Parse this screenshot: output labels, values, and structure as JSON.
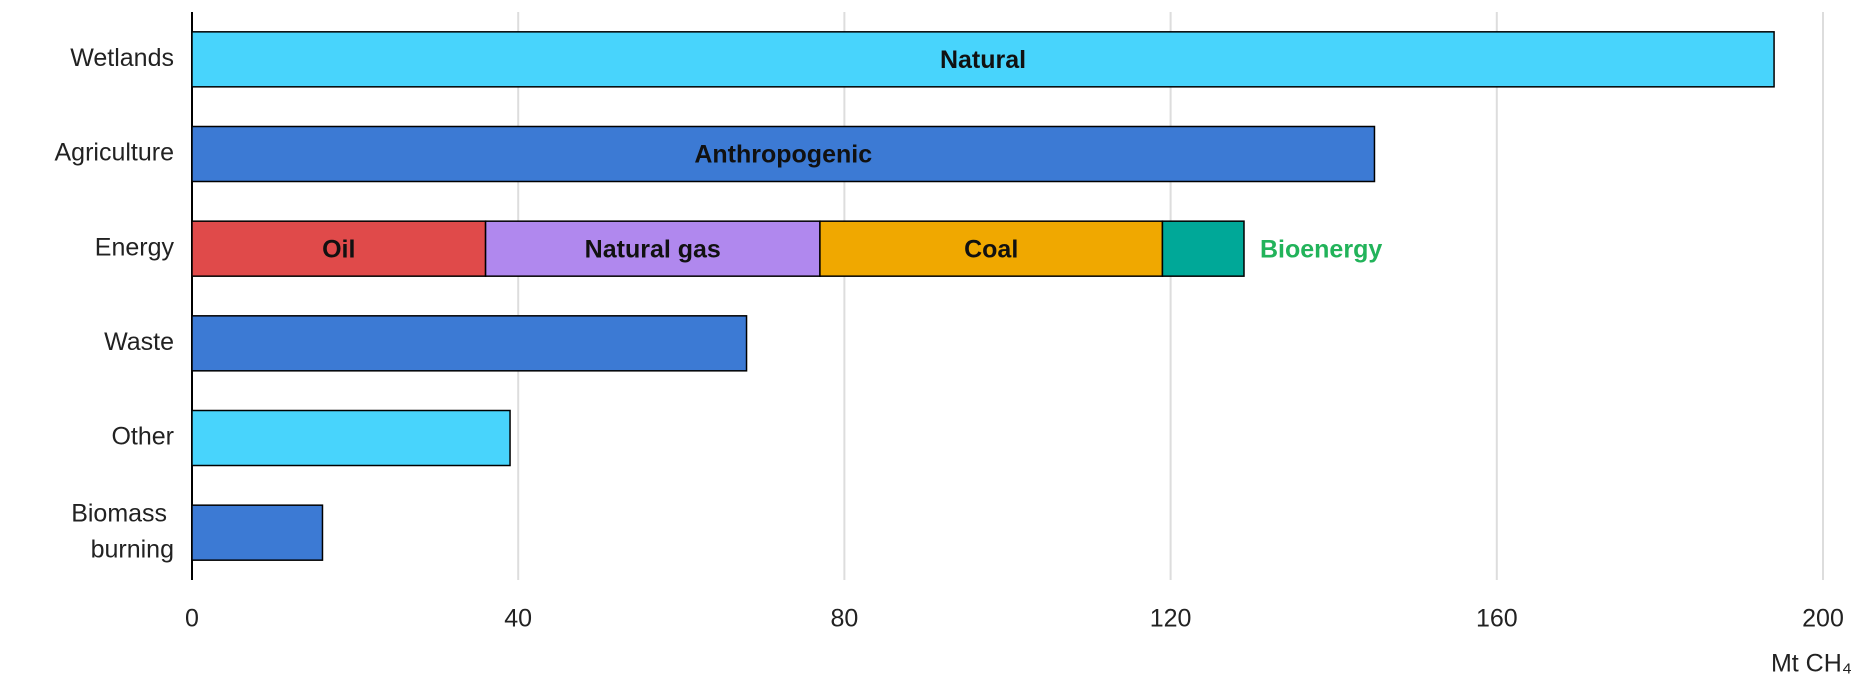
{
  "chart_data": {
    "type": "bar",
    "orientation": "horizontal",
    "stacked": true,
    "categories": [
      "Wetlands",
      "Agriculture",
      "Energy",
      "Waste",
      "Other",
      "Biomass burning"
    ],
    "series": [
      {
        "name": "Natural",
        "color": "#48d4fc",
        "values": [
          194,
          null,
          null,
          null,
          39,
          null
        ]
      },
      {
        "name": "Anthropogenic",
        "color": "#3c7ad4",
        "values": [
          null,
          145,
          null,
          68,
          null,
          16
        ]
      },
      {
        "name": "Oil",
        "color": "#e04a4a",
        "values": [
          null,
          null,
          36,
          null,
          null,
          null
        ]
      },
      {
        "name": "Natural gas",
        "color": "#b088ee",
        "values": [
          null,
          null,
          41,
          null,
          null,
          null
        ]
      },
      {
        "name": "Coal",
        "color": "#f0a800",
        "values": [
          null,
          null,
          42,
          null,
          null,
          null
        ]
      },
      {
        "name": "Bioenergy",
        "color": "#00a898",
        "label_color": "#22b35a",
        "values": [
          null,
          null,
          10,
          null,
          null,
          null
        ]
      }
    ],
    "xlim": [
      0,
      200
    ],
    "xticks": [
      0,
      40,
      80,
      120,
      160,
      200
    ],
    "x_label": "Mt CH₄",
    "grid": true
  }
}
